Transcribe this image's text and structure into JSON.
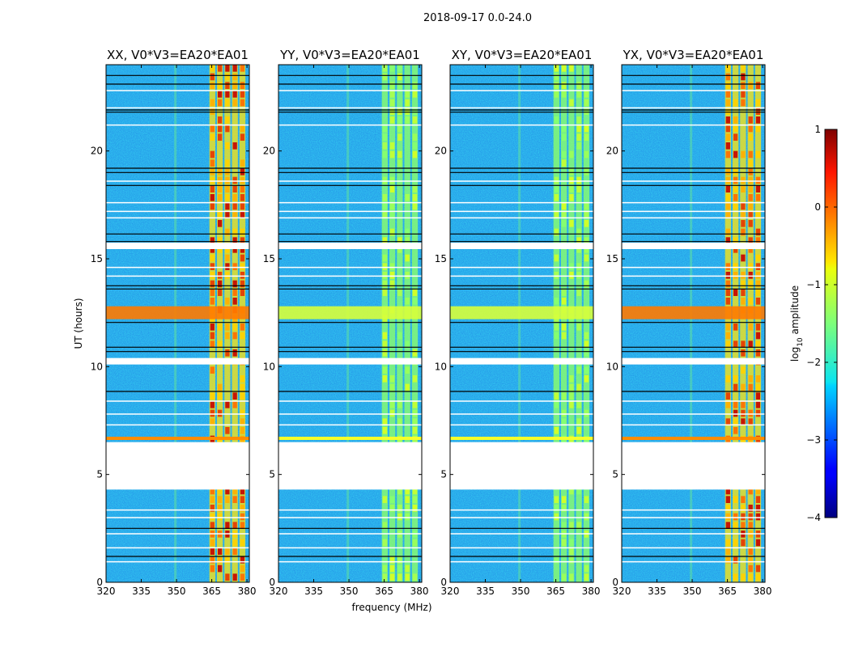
{
  "figure": {
    "suptitle": "2018-09-17 0.0-24.0",
    "xlabel": "frequency (MHz)",
    "ylabel": "UT (hours)"
  },
  "chart_data": {
    "type": "heatmap",
    "title": "2018-09-17 0.0-24.0",
    "xlabel": "frequency (MHz)",
    "ylabel": "UT (hours)",
    "xlim": [
      320,
      381
    ],
    "ylim": [
      0,
      24
    ],
    "xticks": [
      320,
      335,
      350,
      365,
      380
    ],
    "xtick_labels": [
      "320",
      "335",
      "350",
      "365",
      "380"
    ],
    "yticks": [
      0,
      5,
      10,
      15,
      20
    ],
    "ytick_labels": [
      "0",
      "5",
      "10",
      "15",
      "20"
    ],
    "panels": [
      {
        "title": "XX, V0*V3=EA20*EA01",
        "level": "high"
      },
      {
        "title": "YY, V0*V3=EA20*EA01",
        "level": "low"
      },
      {
        "title": "XY, V0*V3=EA20*EA01",
        "level": "low"
      },
      {
        "title": "YX, V0*V3=EA20*EA01",
        "level": "high"
      }
    ],
    "colorbar": {
      "label_text": "log",
      "label_sub": "10",
      "label_suffix": " amplitude",
      "range": [
        -4,
        1
      ],
      "ticks": [
        1,
        0,
        -1,
        -2,
        -3,
        -4
      ],
      "tick_labels": [
        "1",
        "0",
        "−1",
        "−2",
        "−3",
        "−4"
      ],
      "colormap": "jet"
    },
    "data_gap_hours": [
      4.3,
      6.5
    ],
    "flagged_white_hours": [
      10.25,
      15.6
    ],
    "bright_band_mhz": [
      364,
      380
    ],
    "rfi_hours": [
      12.5
    ]
  }
}
